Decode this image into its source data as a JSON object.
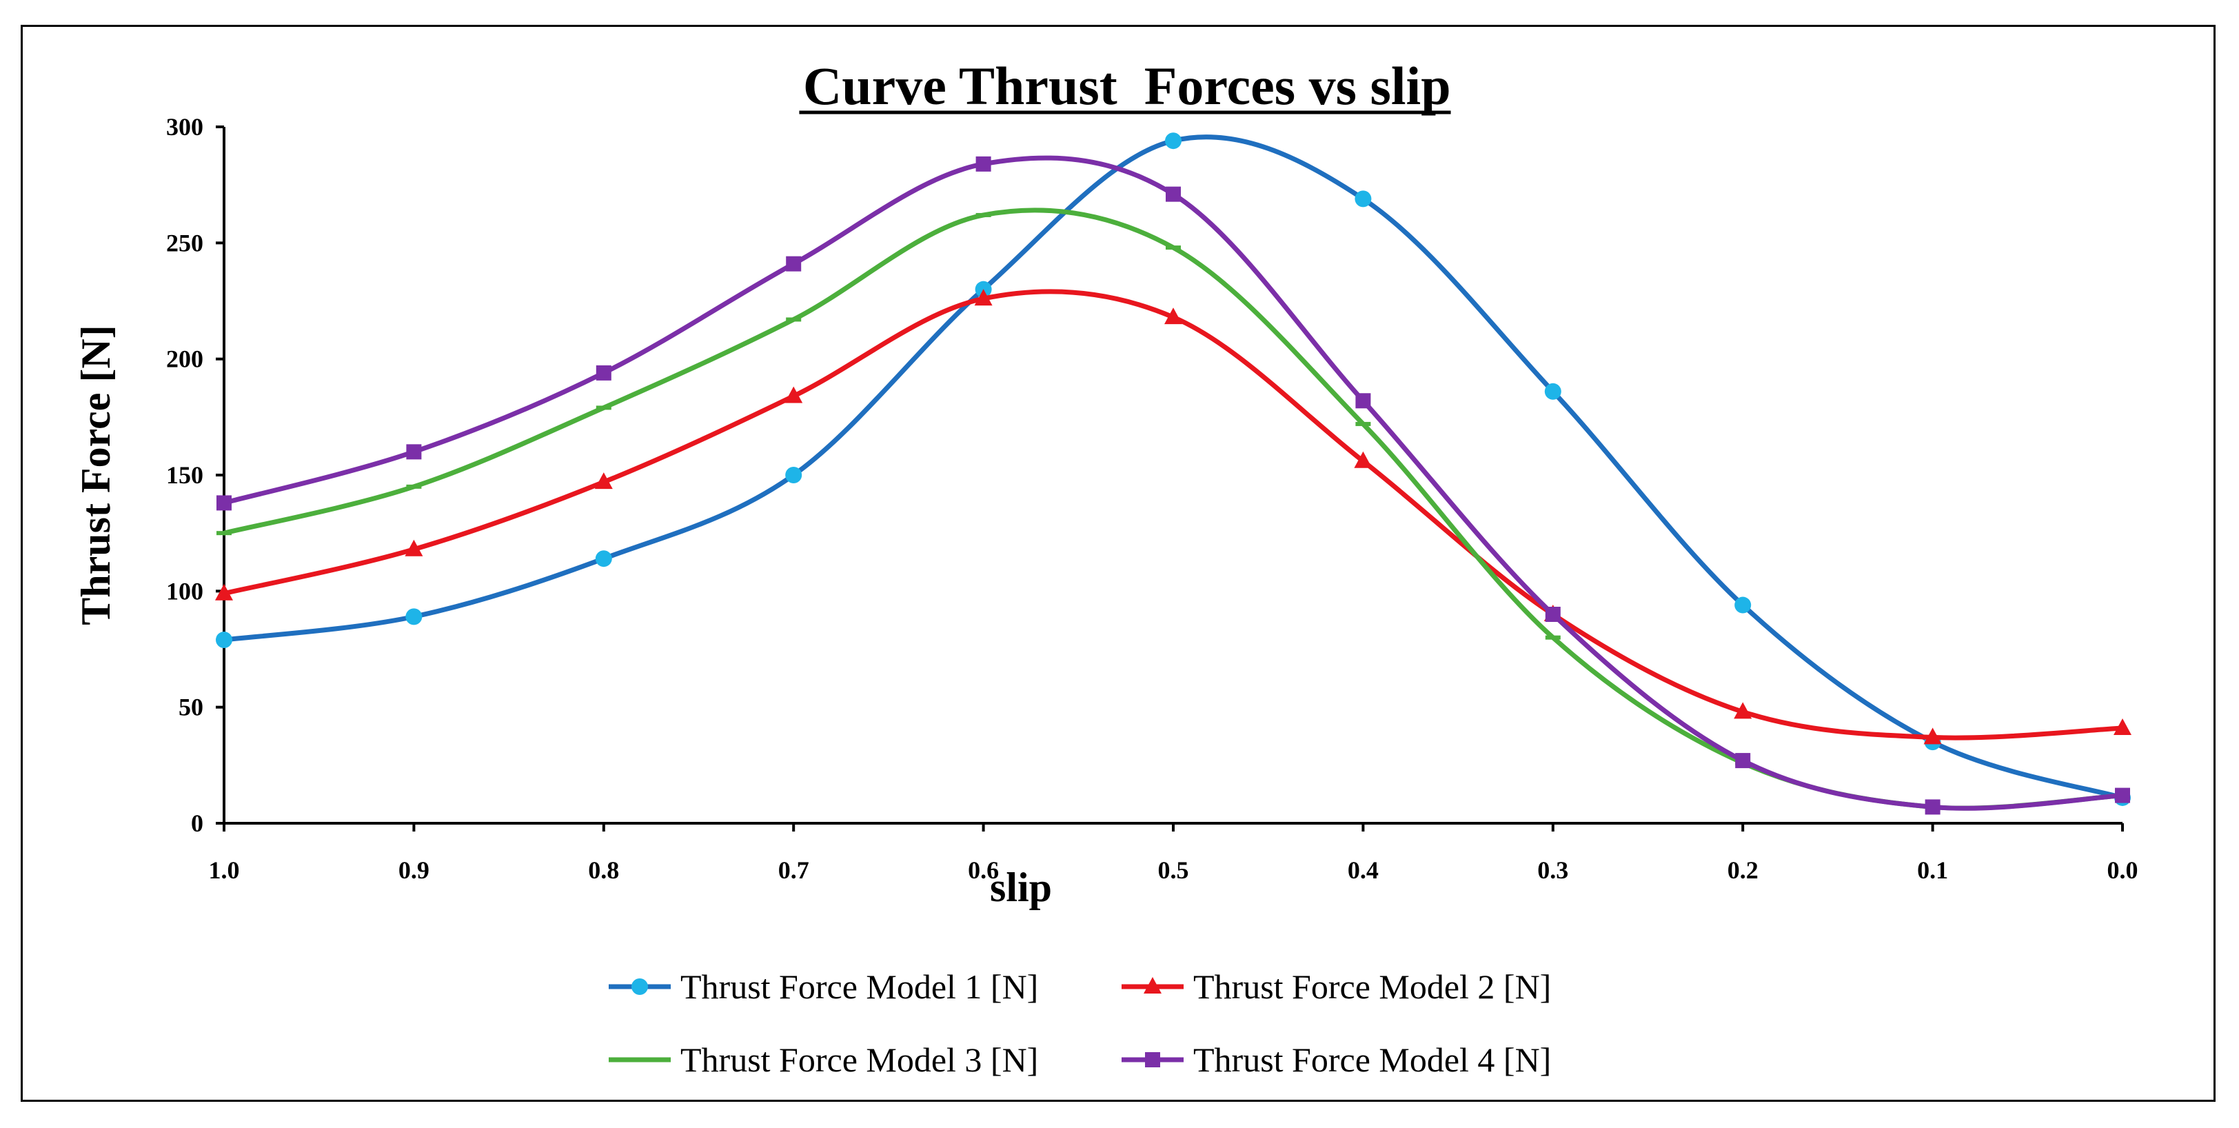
{
  "chart_data": {
    "type": "line",
    "title": " Curve Thrust  Forces vs slip",
    "xlabel": "slip",
    "ylabel": "Thrust Force [N]",
    "x": [
      1.0,
      0.9,
      0.8,
      0.7,
      0.6,
      0.5,
      0.4,
      0.3,
      0.2,
      0.1,
      0.0
    ],
    "x_tick_labels": [
      "1.0",
      "0.9",
      "0.8",
      "0.7",
      "0.6",
      "0.5",
      "0.4",
      "0.3",
      "0.2",
      "0.1",
      "0.0"
    ],
    "xlim": [
      1.0,
      0.0
    ],
    "ylim": [
      0,
      300
    ],
    "y_ticks": [
      0,
      50,
      100,
      150,
      200,
      250,
      300
    ],
    "y_tick_labels": [
      "0",
      "50",
      "100",
      "150",
      "200",
      "250",
      "300"
    ],
    "grid": false,
    "smooth": true,
    "legend_position": "bottom",
    "series": [
      {
        "name": "Thrust Force Model 1 [N]",
        "line_color": "#1F6FBF",
        "marker_color": "#1EB4E8",
        "marker": "circle",
        "values": [
          79,
          89,
          114,
          150,
          230,
          294,
          269,
          186,
          94,
          35,
          11
        ]
      },
      {
        "name": "Thrust Force Model 2 [N]",
        "line_color": "#E8161E",
        "marker_color": "#E8161E",
        "marker": "triangle",
        "values": [
          99,
          118,
          147,
          184,
          226,
          218,
          156,
          90,
          48,
          37,
          41
        ]
      },
      {
        "name": "Thrust Force Model 3 [N]",
        "line_color": "#4CAF3C",
        "marker_color": "#4CAF3C",
        "marker": "dash",
        "values": [
          125,
          145,
          179,
          217,
          262,
          248,
          172,
          80,
          26,
          7,
          12
        ]
      },
      {
        "name": "Thrust Force Model 4 [N]",
        "line_color": "#7B2FA8",
        "marker_color": "#7B2FA8",
        "marker": "square",
        "values": [
          138,
          160,
          194,
          241,
          284,
          271,
          182,
          90,
          27,
          7,
          12
        ]
      }
    ]
  }
}
